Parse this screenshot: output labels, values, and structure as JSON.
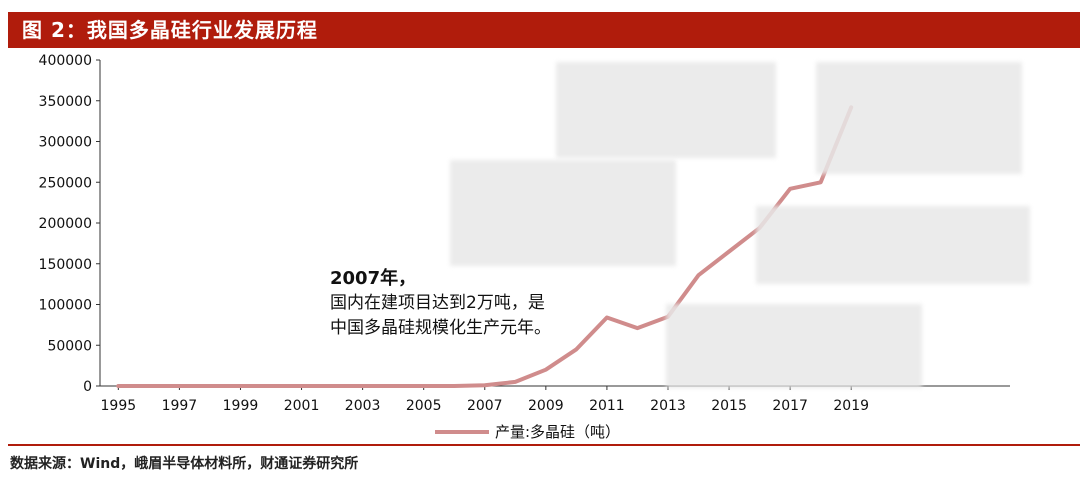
{
  "header": {
    "title": "图 2：我国多晶硅行业发展历程"
  },
  "annotation": {
    "heading": "2007年，",
    "body": "国内在建项目达到2万吨，是中国多晶硅规模化生产元年。"
  },
  "footer": {
    "source": "数据来源：Wind，峨眉半导体材料所，财通证券研究所"
  },
  "colors": {
    "accent": "#b01c0c",
    "series": "#d08c8c"
  },
  "chart_data": {
    "type": "line",
    "title": "",
    "xlabel": "",
    "ylabel": "",
    "ylim": [
      0,
      400000
    ],
    "yticks": [
      "0",
      "50000",
      "100000",
      "150000",
      "200000",
      "250000",
      "300000",
      "350000",
      "400000"
    ],
    "xticks": [
      "1995",
      "1997",
      "1999",
      "2001",
      "2003",
      "2005",
      "2007",
      "2009",
      "2011",
      "2013",
      "2015",
      "2017",
      "2019"
    ],
    "grid": false,
    "legend": "bottom-center",
    "series": [
      {
        "name": "产量:多晶硅（吨）",
        "x": [
          1995,
          1996,
          1997,
          1998,
          1999,
          2000,
          2001,
          2002,
          2003,
          2004,
          2005,
          2006,
          2007,
          2008,
          2009,
          2010,
          2011,
          2012,
          2013,
          2014,
          2015,
          2016,
          2017,
          2018,
          2019
        ],
        "values": [
          0,
          0,
          0,
          0,
          0,
          0,
          0,
          0,
          0,
          0,
          0,
          0,
          1000,
          5000,
          20000,
          45000,
          84000,
          71000,
          85000,
          136000,
          165000,
          194000,
          242000,
          250000,
          342000
        ]
      }
    ]
  }
}
